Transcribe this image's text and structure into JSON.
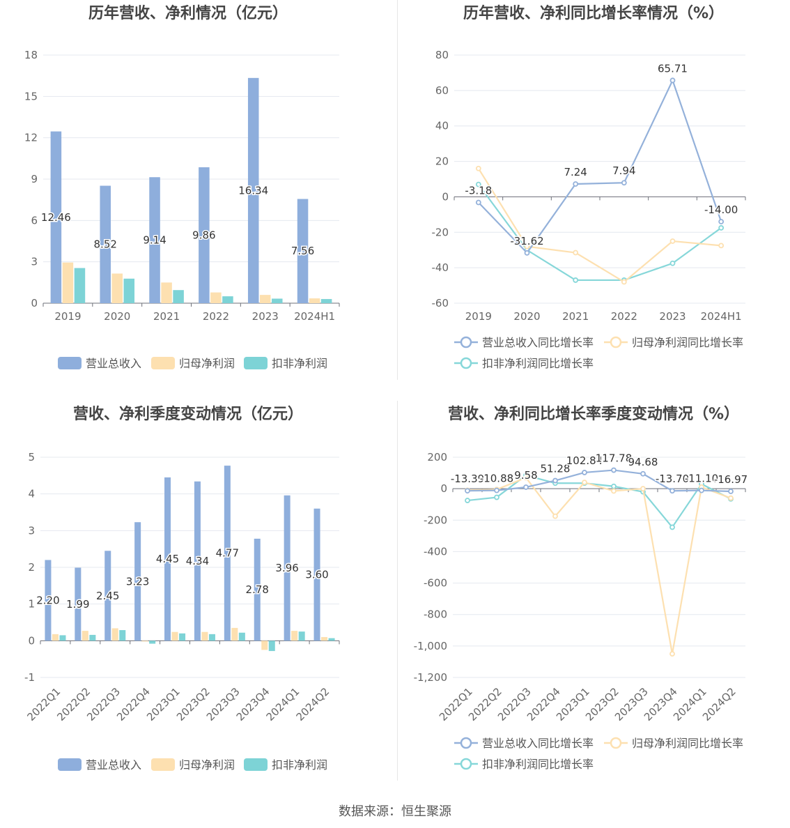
{
  "footer": {
    "source": "数据来源：恒生聚源"
  },
  "legend_labels": {
    "bars": [
      "营业总收入",
      "归母净利润",
      "扣非净利润"
    ],
    "lines": [
      "营业总收入同比增长率",
      "归母净利润同比增长率",
      "扣非净利润同比增长率"
    ]
  },
  "colors": {
    "revenue": "#8eaedc",
    "net_profit": "#fde0b0",
    "deducted_profit": "#7dd3d6"
  },
  "chart_data": [
    {
      "type": "bar",
      "title": "历年营收、净利情况（亿元）",
      "categories": [
        "2019",
        "2020",
        "2021",
        "2022",
        "2023",
        "2024H1"
      ],
      "ylim": [
        0,
        18
      ],
      "yticks": [
        0,
        3,
        6,
        9,
        12,
        15,
        18
      ],
      "series": [
        {
          "name": "营业总收入",
          "values": [
            12.46,
            8.52,
            9.14,
            9.86,
            16.34,
            7.56
          ],
          "labeled": true
        },
        {
          "name": "归母净利润",
          "values": [
            2.95,
            2.15,
            1.5,
            0.78,
            0.6,
            0.35
          ]
        },
        {
          "name": "扣非净利润",
          "values": [
            2.55,
            1.78,
            0.95,
            0.5,
            0.33,
            0.3
          ]
        }
      ],
      "value_labels": [
        "12.46",
        "8.52",
        "9.14",
        "9.86",
        "16.34",
        "7.56"
      ],
      "legend": "bottom"
    },
    {
      "type": "line",
      "title": "历年营收、净利同比增长率情况（%）",
      "categories": [
        "2019",
        "2020",
        "2021",
        "2022",
        "2023",
        "2024H1"
      ],
      "ylim": [
        -60,
        80
      ],
      "yticks": [
        -60,
        -40,
        -20,
        0,
        20,
        40,
        60,
        80
      ],
      "series": [
        {
          "name": "营业总收入同比增长率",
          "values": [
            -3.18,
            -31.62,
            7.24,
            7.94,
            65.71,
            -14.0
          ],
          "labeled": true
        },
        {
          "name": "归母净利润同比增长率",
          "values": [
            16,
            -28,
            -31.5,
            -48,
            -25,
            -27.5
          ]
        },
        {
          "name": "扣非净利润同比增长率",
          "values": [
            7,
            -30,
            -47,
            -47,
            -37.5,
            -17.5
          ]
        }
      ],
      "value_labels": [
        "-3.18",
        "-31.62",
        "7.24",
        "7.94",
        "65.71",
        "-14.00"
      ],
      "legend": "bottom"
    },
    {
      "type": "bar",
      "title": "营收、净利季度变动情况（亿元）",
      "categories": [
        "2022Q1",
        "2022Q2",
        "2022Q3",
        "2022Q4",
        "2023Q1",
        "2023Q2",
        "2023Q3",
        "2023Q4",
        "2024Q1",
        "2024Q2"
      ],
      "ylim": [
        -1,
        5
      ],
      "yticks": [
        -1,
        0,
        1,
        2,
        3,
        4,
        5
      ],
      "series": [
        {
          "name": "营业总收入",
          "values": [
            2.2,
            1.99,
            2.45,
            3.23,
            4.45,
            4.34,
            4.77,
            2.78,
            3.96,
            3.6
          ],
          "labeled": true
        },
        {
          "name": "归母净利润",
          "values": [
            0.18,
            0.27,
            0.34,
            -0.02,
            0.24,
            0.24,
            0.35,
            -0.25,
            0.27,
            0.1
          ]
        },
        {
          "name": "扣非净利润",
          "values": [
            0.15,
            0.16,
            0.29,
            -0.08,
            0.2,
            0.18,
            0.22,
            -0.28,
            0.25,
            0.07
          ]
        }
      ],
      "value_labels": [
        "2.20",
        "1.99",
        "2.45",
        "3.23",
        "4.45",
        "4.34",
        "4.77",
        "2.78",
        "3.96",
        "3.60"
      ],
      "legend": "bottom"
    },
    {
      "type": "line",
      "title": "营收、净利同比增长率季度变动情况（%）",
      "categories": [
        "2022Q1",
        "2022Q2",
        "2022Q3",
        "2022Q4",
        "2023Q1",
        "2023Q2",
        "2023Q3",
        "2023Q4",
        "2024Q1",
        "2024Q2"
      ],
      "ylim": [
        -1200,
        200
      ],
      "yticks": [
        -1200,
        -1000,
        -800,
        -600,
        -400,
        -200,
        0,
        200
      ],
      "series": [
        {
          "name": "营业总收入同比增长率",
          "values": [
            -13.39,
            -10.88,
            9.58,
            51.28,
            102.84,
            117.78,
            94.68,
            -13.7,
            -11.1,
            -16.97
          ],
          "labeled": true
        },
        {
          "name": "归母净利润同比增长率",
          "values": [
            -10,
            -5,
            70,
            -175,
            40,
            -15,
            0,
            -1050,
            10,
            -60
          ]
        },
        {
          "name": "扣非净利润同比增长率",
          "values": [
            -75,
            -55,
            85,
            35,
            35,
            15,
            -20,
            -245,
            30,
            -65
          ]
        }
      ],
      "value_labels": [
        "-13.39",
        "-10.88",
        "9.58",
        "51.28",
        "102.84",
        "117.78",
        "94.68",
        "-13.70",
        "-11.10",
        "-16.97"
      ],
      "legend": "bottom"
    }
  ]
}
